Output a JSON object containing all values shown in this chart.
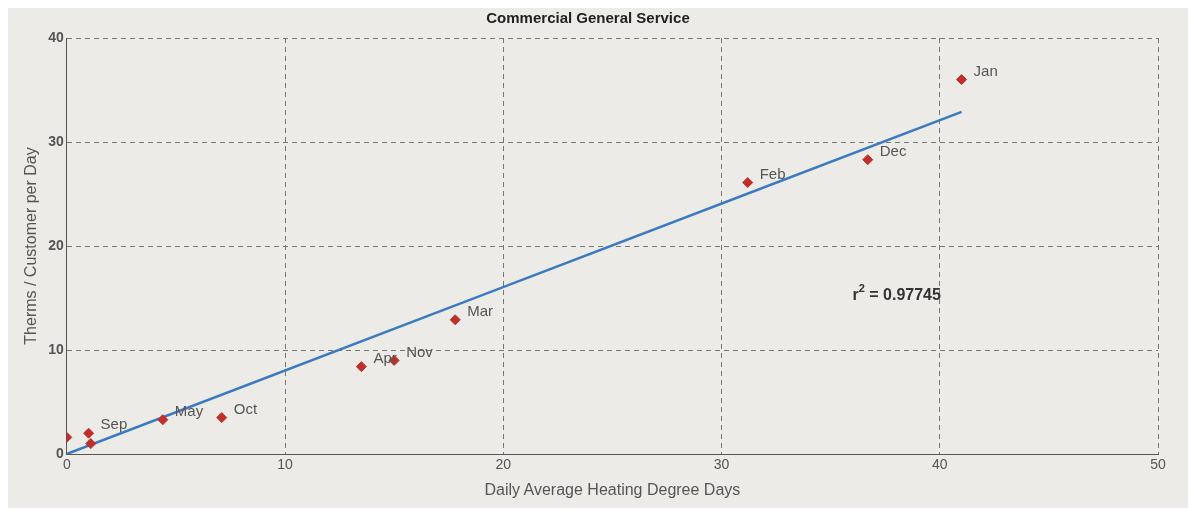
{
  "chart_data": {
    "type": "scatter",
    "title": "Commercial General Service",
    "xlabel": "Daily Average Heating Degree Days",
    "ylabel": "Therms / Customer per Day",
    "series": [
      {
        "type": "scatter",
        "color": "#c0302a",
        "marker": "diamond",
        "x": [
          0,
          1.0,
          1.1,
          4.4,
          7.1,
          13.5,
          15.0,
          17.8,
          31.2,
          36.7,
          41.0
        ],
        "values": [
          1.6,
          2.0,
          1.0,
          3.3,
          3.5,
          8.4,
          9.0,
          12.9,
          26.1,
          28.3,
          36.0
        ]
      },
      {
        "type": "line",
        "color": "#3a7abf",
        "marker": "none",
        "line_style": "solid",
        "x": [
          0,
          41.0
        ],
        "values": [
          0,
          32.9
        ]
      }
    ],
    "xlim": [
      0,
      50
    ],
    "xticks": [
      0,
      10,
      20,
      30,
      40,
      50
    ],
    "ylim": [
      0,
      40
    ],
    "yticks": [
      0,
      10,
      20,
      30,
      40
    ],
    "grid": true,
    "legend": false,
    "annotations": [
      {
        "text": "Sep",
        "x": 1.0,
        "y": 2.0
      },
      {
        "text": "May",
        "x": 4.4,
        "y": 3.3
      },
      {
        "text": "Oct",
        "x": 7.1,
        "y": 3.5
      },
      {
        "text": "Apr",
        "x": 13.5,
        "y": 8.4
      },
      {
        "text": "Nov",
        "x": 15.0,
        "y": 9.0
      },
      {
        "text": "Mar",
        "x": 17.8,
        "y": 12.9
      },
      {
        "text": "Feb",
        "x": 31.2,
        "y": 26.1
      },
      {
        "text": "Dec",
        "x": 36.7,
        "y": 28.3
      },
      {
        "text": "Jan",
        "x": 41.0,
        "y": 36.0
      },
      "r$^{2}$ = 0.97745"
    ]
  }
}
